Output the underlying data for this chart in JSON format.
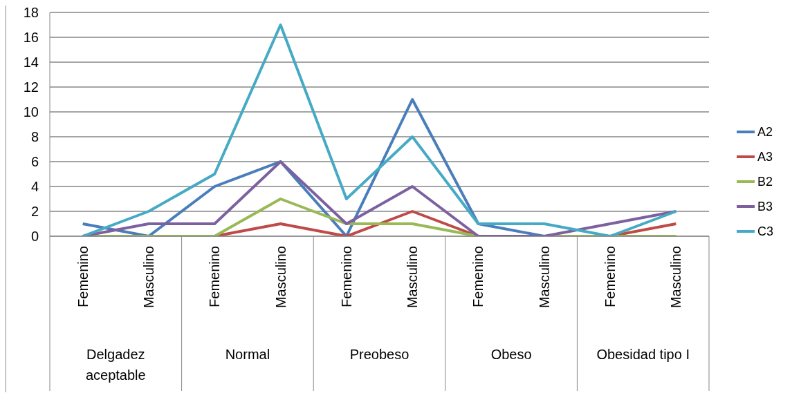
{
  "chart_data": {
    "type": "line",
    "categories": [
      "Femenino",
      "Masculino",
      "Femenino",
      "Masculino",
      "Femenino",
      "Masculino",
      "Femenino",
      "Masculino",
      "Femenino",
      "Masculino"
    ],
    "annotations": [
      "Delgadez aceptable",
      "Normal",
      "Preobeso",
      "Obeso",
      "Obesidad tipo I"
    ],
    "series": [
      {
        "name": "A2",
        "color": "#4a7ebb",
        "values": [
          1,
          0,
          4,
          6,
          0,
          11,
          1,
          0,
          0,
          0
        ]
      },
      {
        "name": "A3",
        "color": "#be4b48",
        "values": [
          0,
          0,
          0,
          1,
          0,
          2,
          0,
          0,
          0,
          1
        ]
      },
      {
        "name": "B2",
        "color": "#98b954",
        "values": [
          0,
          0,
          0,
          3,
          1,
          1,
          0,
          0,
          0,
          0
        ]
      },
      {
        "name": "B3",
        "color": "#7d60a0",
        "values": [
          0,
          1,
          1,
          6,
          1,
          4,
          0,
          0,
          1,
          2
        ]
      },
      {
        "name": "C3",
        "color": "#46aac5",
        "values": [
          0,
          2,
          5,
          17,
          3,
          8,
          1,
          1,
          0,
          2
        ]
      }
    ],
    "ylim": [
      0,
      18
    ],
    "yticks": [
      0,
      2,
      4,
      6,
      8,
      10,
      12,
      14,
      16,
      18
    ],
    "grid": "y",
    "legend": "right",
    "marker": "none",
    "line_style": "solid"
  }
}
